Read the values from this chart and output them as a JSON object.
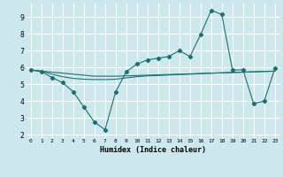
{
  "xlabel": "Humidex (Indice chaleur)",
  "bg_color": "#cde8ec",
  "grid_color": "#ffffff",
  "line_color": "#1e7070",
  "x_ticks": [
    0,
    1,
    2,
    3,
    4,
    5,
    6,
    7,
    8,
    9,
    10,
    11,
    12,
    13,
    14,
    15,
    16,
    17,
    18,
    19,
    20,
    21,
    22,
    23
  ],
  "y_ticks": [
    2,
    3,
    4,
    5,
    6,
    7,
    8,
    9
  ],
  "xlim": [
    -0.5,
    23.5
  ],
  "ylim": [
    1.8,
    9.8
  ],
  "series1_x": [
    0,
    1,
    2,
    3,
    4,
    5,
    6,
    7,
    8,
    9,
    10,
    11,
    12,
    13,
    14,
    15,
    16,
    17,
    18,
    19,
    20,
    21,
    22,
    23
  ],
  "series1_y": [
    5.85,
    5.75,
    5.4,
    5.1,
    4.55,
    3.65,
    2.75,
    2.3,
    4.55,
    5.75,
    6.2,
    6.45,
    6.55,
    6.65,
    7.0,
    6.65,
    7.95,
    9.4,
    9.15,
    5.85,
    5.85,
    3.85,
    4.0,
    5.95
  ],
  "series2_x": [
    0,
    1,
    2,
    3,
    4,
    5,
    6,
    7,
    8,
    9,
    10,
    11,
    12,
    13,
    14,
    15,
    16,
    17,
    18,
    19,
    20,
    21,
    22,
    23
  ],
  "series2_y": [
    5.85,
    5.78,
    5.72,
    5.66,
    5.6,
    5.54,
    5.48,
    5.48,
    5.48,
    5.5,
    5.52,
    5.54,
    5.56,
    5.58,
    5.6,
    5.62,
    5.64,
    5.66,
    5.68,
    5.7,
    5.72,
    5.74,
    5.76,
    5.78
  ],
  "series3_x": [
    0,
    1,
    2,
    3,
    4,
    5,
    6,
    7,
    8,
    9,
    10,
    11,
    12,
    13,
    14,
    15,
    16,
    17,
    18,
    19,
    20,
    21,
    22,
    23
  ],
  "series3_y": [
    5.85,
    5.78,
    5.6,
    5.45,
    5.35,
    5.3,
    5.28,
    5.28,
    5.3,
    5.38,
    5.45,
    5.5,
    5.52,
    5.55,
    5.58,
    5.6,
    5.63,
    5.66,
    5.68,
    5.7,
    5.72,
    5.74,
    5.76,
    5.78
  ]
}
